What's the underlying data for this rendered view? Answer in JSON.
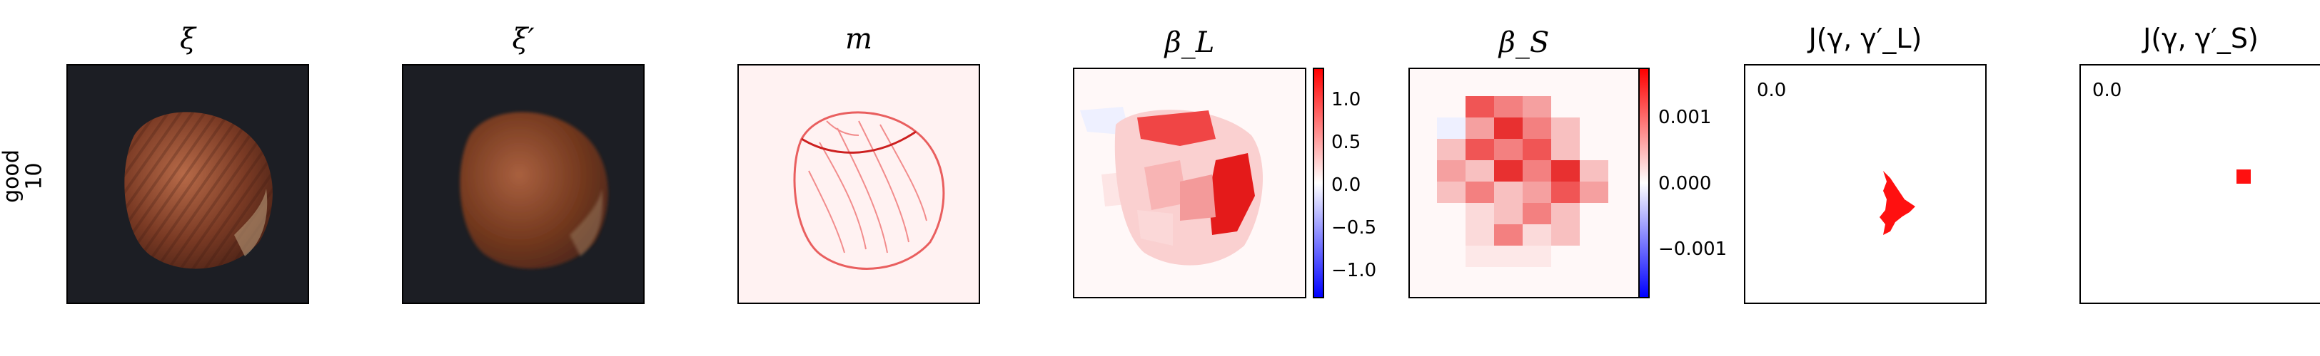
{
  "row_label": [
    "good",
    "10"
  ],
  "panels": [
    {
      "title": "ξ"
    },
    {
      "title": "ξ′"
    },
    {
      "title": "m"
    },
    {
      "title": "β_L",
      "colorbar_ticks": [
        "1.0",
        "0.5",
        "0.0",
        "−0.5",
        "−1.0"
      ]
    },
    {
      "title": "β_S",
      "colorbar_ticks": [
        "0.001",
        "0.000",
        "−0.001"
      ]
    },
    {
      "title": "J(γ, γ′_L)",
      "value": "0.0"
    },
    {
      "title": "J(γ, γ′_S)",
      "value": "0.0"
    }
  ],
  "colors": {
    "neg": "#0000ff",
    "mid": "#ffffff",
    "pos": "#ff0000",
    "photo_bg": "#1c1e24"
  }
}
